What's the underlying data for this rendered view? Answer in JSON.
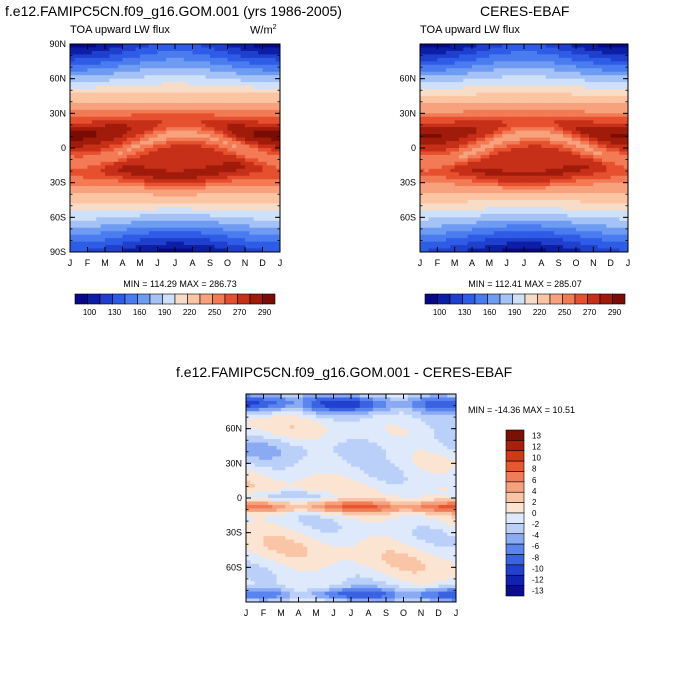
{
  "chart_data": [
    {
      "type": "heatmap",
      "title": "f.e12.FAMIPC5CN.f09_g16.GOM.001 (yrs 1986-2005)",
      "subtitle": "TOA upward LW flux",
      "units_base": "W/m",
      "units_sup": "2",
      "x_ticks": [
        "J",
        "F",
        "M",
        "A",
        "M",
        "J",
        "J",
        "A",
        "S",
        "O",
        "N",
        "D",
        "J"
      ],
      "y_ticks": [
        "90N",
        "60N",
        "30N",
        "0",
        "30S",
        "60S",
        "90S"
      ],
      "y_tick_values": [
        90,
        60,
        30,
        0,
        -30,
        -60,
        -90
      ],
      "ylim": [
        -90,
        90
      ],
      "stats": "MIN = 114.29 MAX = 286.73",
      "min": 114.29,
      "max": 286.73,
      "colorbar_labels": [
        "100",
        "130",
        "160",
        "190",
        "220",
        "250",
        "270",
        "290"
      ]
    },
    {
      "type": "heatmap",
      "title": "CERES-EBAF",
      "subtitle": "TOA upward LW flux",
      "x_ticks": [
        "J",
        "F",
        "M",
        "A",
        "M",
        "J",
        "J",
        "A",
        "S",
        "O",
        "N",
        "D",
        "J"
      ],
      "y_ticks": [
        "60N",
        "30N",
        "0",
        "30S",
        "60S"
      ],
      "y_tick_values": [
        60,
        30,
        0,
        -30,
        -60
      ],
      "ylim": [
        -90,
        90
      ],
      "stats": "MIN = 112.41 MAX = 285.07",
      "min": 112.41,
      "max": 285.07,
      "colorbar_labels": [
        "100",
        "130",
        "160",
        "190",
        "220",
        "250",
        "270",
        "290"
      ]
    },
    {
      "type": "heatmap",
      "title": "f.e12.FAMIPC5CN.f09_g16.GOM.001 - CERES-EBAF",
      "x_ticks": [
        "J",
        "F",
        "M",
        "A",
        "M",
        "J",
        "J",
        "A",
        "S",
        "O",
        "N",
        "D",
        "J"
      ],
      "y_ticks": [
        "60N",
        "30N",
        "0",
        "30S",
        "60S"
      ],
      "y_tick_values": [
        60,
        30,
        0,
        -30,
        -60
      ],
      "ylim": [
        -90,
        90
      ],
      "stats": "MIN = -14.36 MAX =  10.51",
      "min": -14.36,
      "max": 10.51,
      "colorbar_labels": [
        "13",
        "12",
        "10",
        "8",
        "6",
        "4",
        "2",
        "0",
        "-2",
        "-4",
        "-6",
        "-8",
        "-10",
        "-12",
        "-13"
      ]
    }
  ],
  "palettes": {
    "absolute": [
      "#08088a",
      "#0d1ea6",
      "#1f3fcd",
      "#2f5ce6",
      "#4a7cef",
      "#6e9cf3",
      "#a4c2f6",
      "#cfe0f9",
      "#f7ddc8",
      "#fbc4a2",
      "#f8a27d",
      "#f27a55",
      "#e6502e",
      "#c62f18",
      "#a11b0a",
      "#7a0c04"
    ],
    "difference": [
      "#0b0d8c",
      "#1121b0",
      "#2240d0",
      "#3a62e2",
      "#5a84ee",
      "#8aaaf4",
      "#bad0f8",
      "#deeafb",
      "#fbe4d2",
      "#f9c5a6",
      "#f6a17e",
      "#f07d58",
      "#e6572e",
      "#ce3a17",
      "#a9200a",
      "#7d1004"
    ]
  }
}
